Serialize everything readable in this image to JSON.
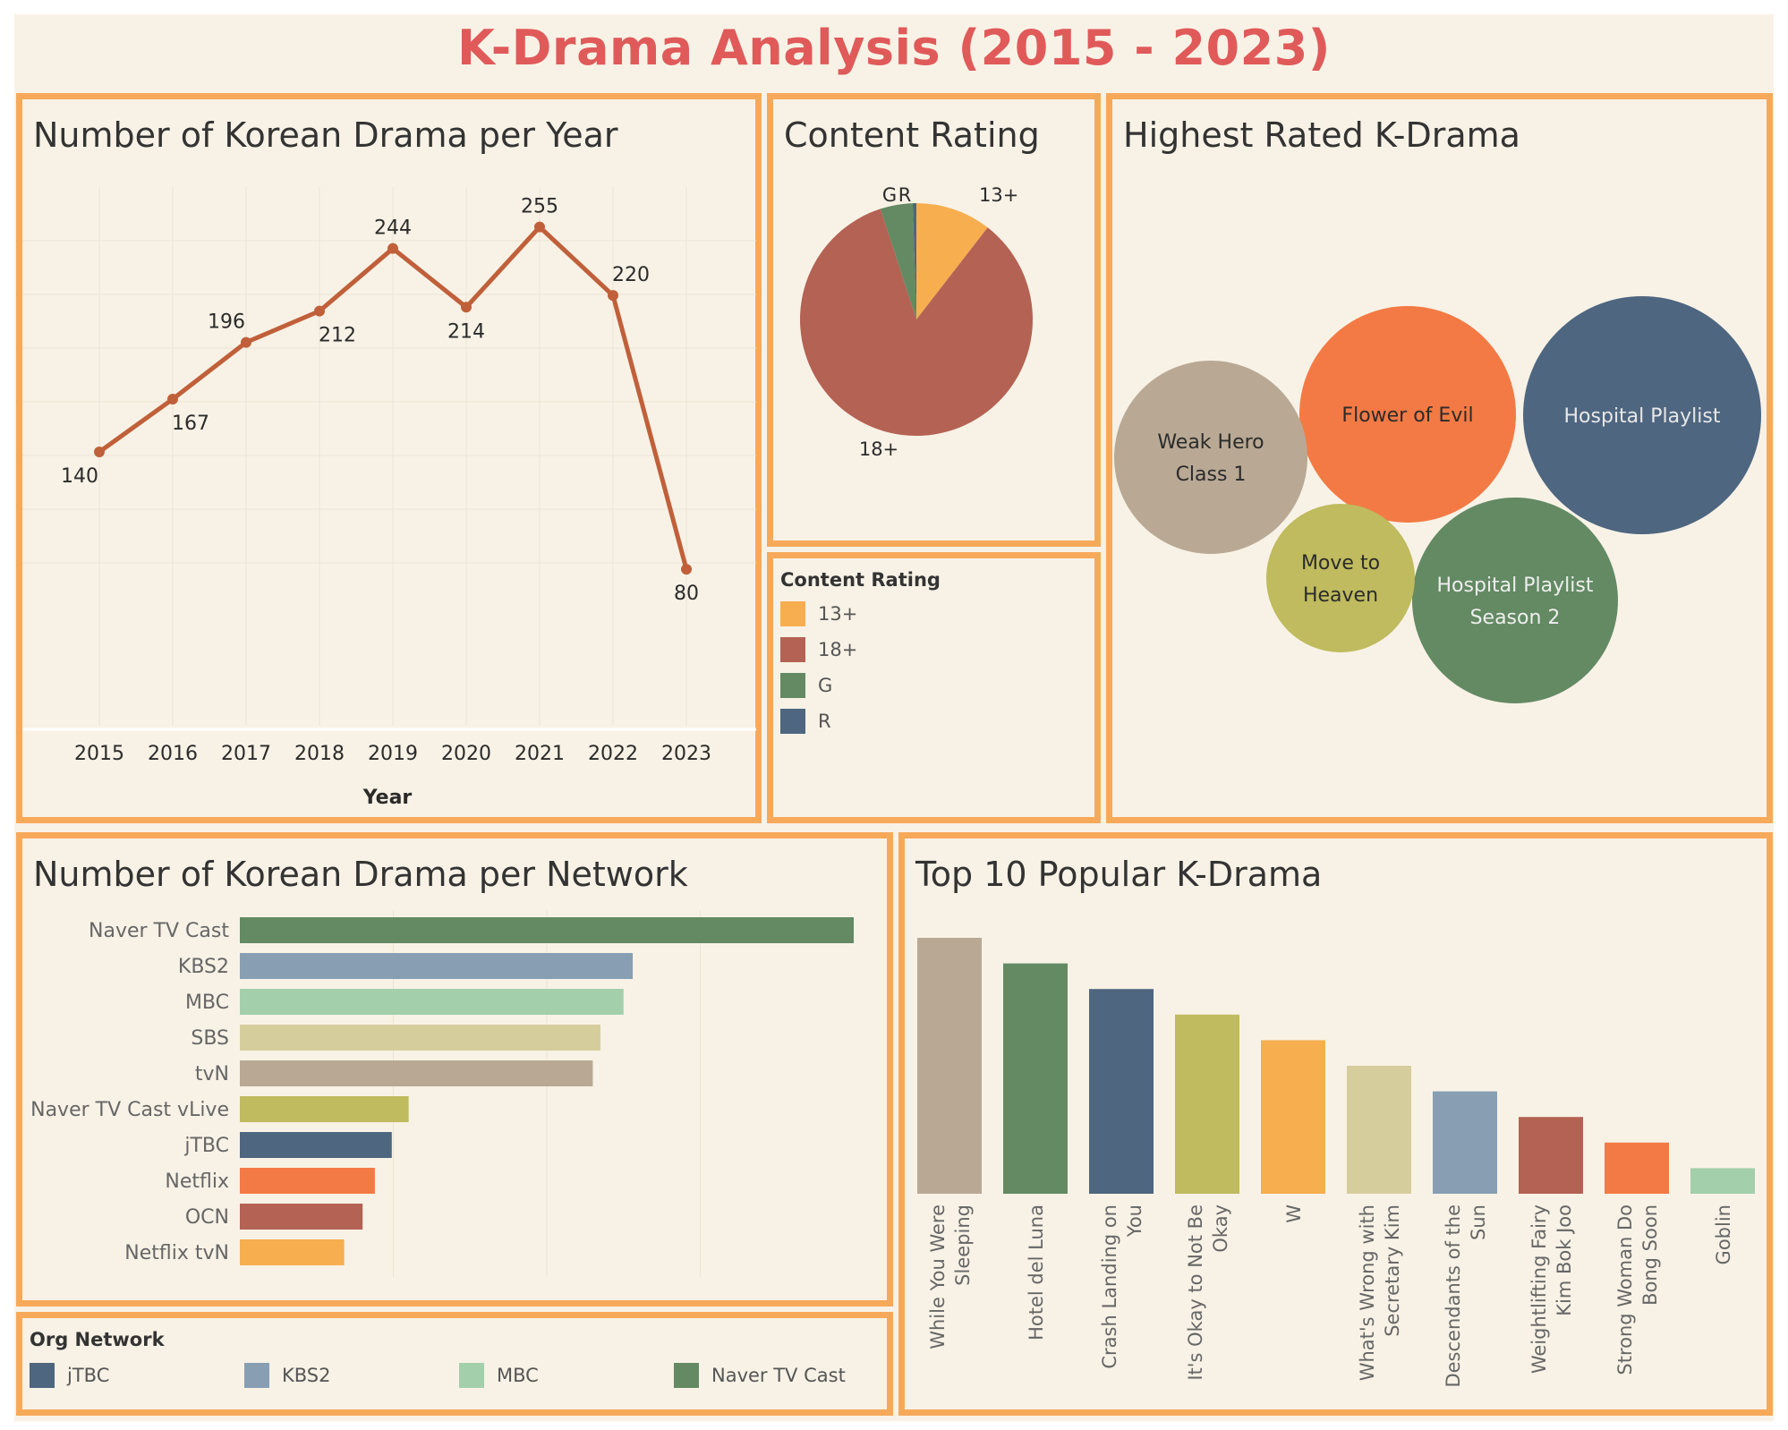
{
  "dashboard": {
    "title": "K-Drama Analysis (2015 - 2023)"
  },
  "panels": {
    "per_year": {
      "title": "Number of Korean Drama per Year"
    },
    "content_rating": {
      "title": "Content Rating"
    },
    "highest_rated": {
      "title": "Highest Rated K-Drama"
    },
    "per_network": {
      "title": "Number of Korean Drama per Network"
    },
    "top10": {
      "title": "Top 10 Popular K-Drama"
    }
  },
  "legends": {
    "content_rating": {
      "title": "Content Rating",
      "items": [
        {
          "label": "13+",
          "color": "#f7ae4f"
        },
        {
          "label": "18+",
          "color": "#b46253"
        },
        {
          "label": "G",
          "color": "#638a63"
        },
        {
          "label": "R",
          "color": "#4e6680"
        }
      ]
    },
    "org_network": {
      "title": "Org Network",
      "items": [
        {
          "label": "jTBC",
          "color": "#4e6680"
        },
        {
          "label": "KBS2",
          "color": "#879eb3"
        },
        {
          "label": "MBC",
          "color": "#a3cfab"
        },
        {
          "label": "Naver TV Cast",
          "color": "#638a63"
        }
      ]
    }
  },
  "chart_data": [
    {
      "type": "line",
      "title": "Number of Korean Drama per Year",
      "xlabel": "Year",
      "ylabel": "",
      "x": [
        "2015",
        "2016",
        "2017",
        "2018",
        "2019",
        "2020",
        "2021",
        "2022",
        "2023"
      ],
      "values": [
        140,
        167,
        196,
        212,
        244,
        214,
        255,
        220,
        80
      ],
      "ylim": [
        0,
        280
      ],
      "color": "#c0603a",
      "grid": true
    },
    {
      "type": "pie",
      "title": "Content Rating",
      "slices": [
        {
          "label": "13+",
          "value": 10.5,
          "color": "#f7ae4f"
        },
        {
          "label": "18+",
          "value": 84.5,
          "color": "#b46253"
        },
        {
          "label": "G",
          "value": 4.5,
          "color": "#638a63"
        },
        {
          "label": "R",
          "value": 0.5,
          "color": "#4e6680"
        }
      ]
    },
    {
      "type": "bubble",
      "title": "Highest Rated K-Drama",
      "bubbles": [
        {
          "lines": [
            "Hospital Playlist"
          ],
          "value": 100,
          "color": "#4e6680",
          "text_color": "#e8e8e8"
        },
        {
          "lines": [
            "Flower of Evil"
          ],
          "value": 82,
          "color": "#f37a44",
          "text_color": "#2b2b2b"
        },
        {
          "lines": [
            "Hospital Playlist",
            "Season 2"
          ],
          "value": 74,
          "color": "#638a63",
          "text_color": "#eeeeee"
        },
        {
          "lines": [
            "Weak Hero",
            "Class 1"
          ],
          "value": 66,
          "color": "#b9a994",
          "text_color": "#2b2b2b"
        },
        {
          "lines": [
            "Move to",
            "Heaven"
          ],
          "value": 38,
          "color": "#bfbb5e",
          "text_color": "#2b2b2b"
        }
      ]
    },
    {
      "type": "bar",
      "orientation": "horizontal",
      "title": "Number of Korean Drama per Network",
      "categories": [
        "Naver TV Cast",
        "KBS2",
        "MBC",
        "SBS",
        "tvN",
        "Naver TV Cast vLive",
        "jTBC",
        "Netflix",
        "OCN",
        "Netflix tvN"
      ],
      "values": [
        400,
        256,
        250,
        235,
        230,
        110,
        99,
        88,
        80,
        68
      ],
      "colors": [
        "#638a63",
        "#879eb3",
        "#a3cfab",
        "#d6cd9d",
        "#b9a994",
        "#bfbb5e",
        "#4e6680",
        "#f37a44",
        "#b46253",
        "#f7ae4f"
      ],
      "xlim": [
        0,
        400
      ],
      "grid": true
    },
    {
      "type": "bar",
      "title": "Top 10 Popular K-Drama",
      "categories": [
        [
          "While You Were",
          "Sleeping"
        ],
        [
          "Hotel del Luna"
        ],
        [
          "Crash Landing on",
          "You"
        ],
        [
          "It's Okay to Not Be",
          "Okay"
        ],
        [
          "W"
        ],
        [
          "What's Wrong with",
          "Secretary Kim"
        ],
        [
          "Descendants of the",
          "Sun"
        ],
        [
          "Weightlifting Fairy",
          "Kim Bok Joo"
        ],
        [
          "Strong Woman Do",
          "Bong Soon"
        ],
        [
          "Goblin"
        ]
      ],
      "values": [
        100,
        90,
        80,
        70,
        60,
        50,
        40,
        30,
        20,
        10
      ],
      "colors": [
        "#b9a994",
        "#638a63",
        "#4e6680",
        "#bfbb5e",
        "#f7ae4f",
        "#d6cd9d",
        "#879eb3",
        "#b46253",
        "#f37a44",
        "#a3cfab"
      ],
      "ylim": [
        0,
        100
      ]
    }
  ]
}
